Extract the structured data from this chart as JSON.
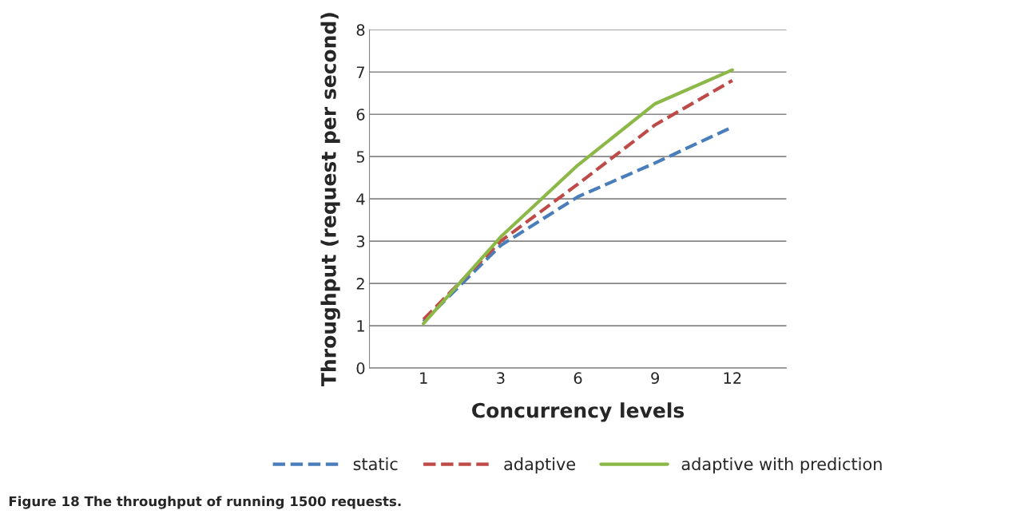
{
  "chart_data": {
    "type": "line",
    "xlabel": "Concurrency levels",
    "ylabel": "Throughput (request per second)",
    "categories": [
      "1",
      "3",
      "6",
      "9",
      "12"
    ],
    "series": [
      {
        "name": "static",
        "color": "#4a7ebb",
        "line_style": "dashed",
        "values": [
          1.1,
          2.9,
          4.05,
          4.85,
          5.7
        ]
      },
      {
        "name": "adaptive",
        "color": "#be4b48",
        "line_style": "dashed",
        "values": [
          1.15,
          3.0,
          4.35,
          5.75,
          6.8
        ]
      },
      {
        "name": "adaptive with prediction",
        "color": "#8cb848",
        "line_style": "solid",
        "values": [
          1.05,
          3.1,
          4.8,
          6.25,
          7.05
        ]
      }
    ],
    "ylim": [
      0,
      8
    ],
    "yticks": [
      0,
      1,
      2,
      3,
      4,
      5,
      6,
      7,
      8
    ],
    "grid": "y",
    "legend": "bottom",
    "marker": "none",
    "annotations": [
      "Figure 18 The throughput of running 1500 requests."
    ]
  }
}
